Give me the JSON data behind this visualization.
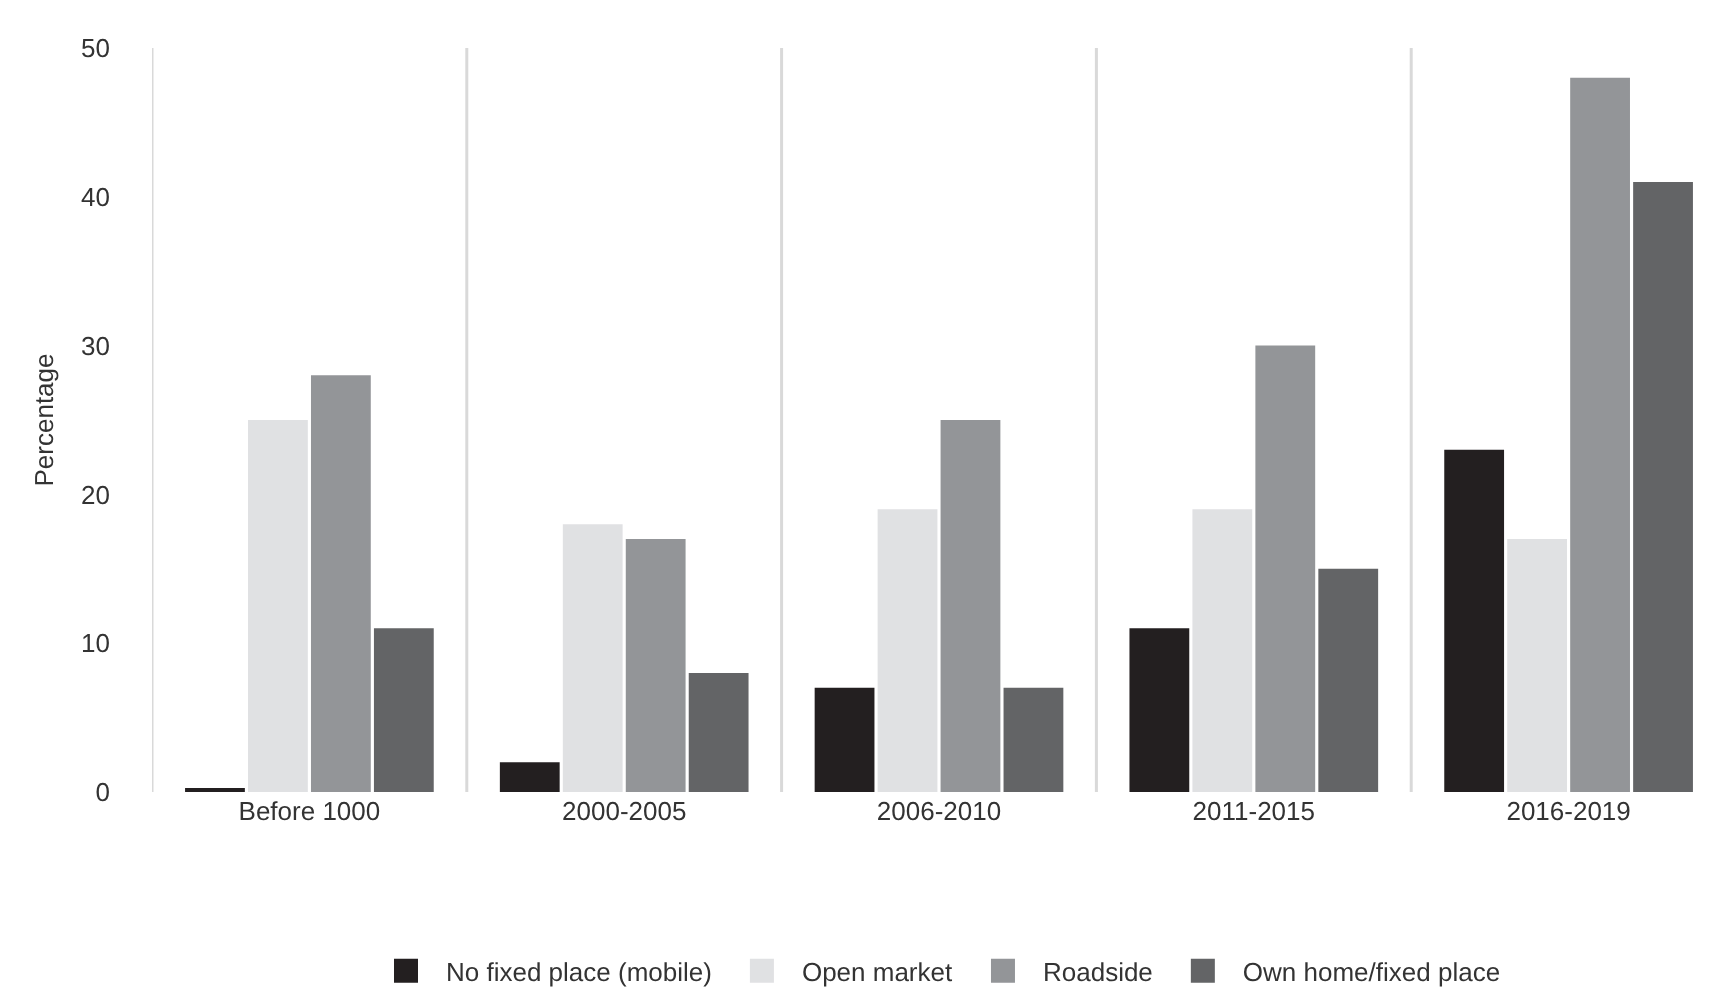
{
  "chart_data": {
    "type": "bar",
    "ylabel": "Percentage",
    "categories": [
      "Before 1000",
      "2000-2005",
      "2006-2010",
      "2011-2015",
      "2016-2019"
    ],
    "series": [
      {
        "name": "No fixed place (mobile)",
        "color": "#231f20",
        "values": [
          0.2,
          2,
          7,
          11,
          23
        ]
      },
      {
        "name": "Open market",
        "color": "#e0e1e3",
        "values": [
          25,
          18,
          19,
          19,
          17
        ]
      },
      {
        "name": "Roadside",
        "color": "#939598",
        "values": [
          28,
          17,
          25,
          30,
          48
        ]
      },
      {
        "name": "Own home/fixed place",
        "color": "#636466",
        "values": [
          11,
          8,
          7,
          15,
          41
        ]
      }
    ],
    "ylim": [
      0,
      50
    ],
    "yticks": [
      0,
      10,
      20,
      30,
      40,
      50
    ],
    "grid": "x",
    "legend": "bottom"
  }
}
